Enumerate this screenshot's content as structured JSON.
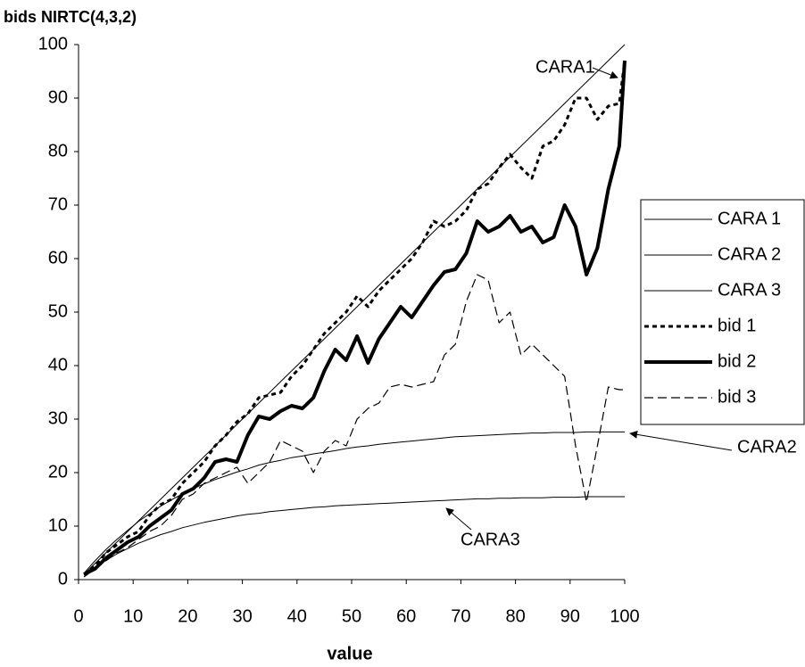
{
  "chart_data": {
    "type": "line",
    "title": "bids NIRTC(4,3,2)",
    "xlabel": "value",
    "x": [
      1,
      3,
      5,
      7,
      9,
      11,
      13,
      15,
      17,
      19,
      21,
      23,
      25,
      27,
      29,
      31,
      33,
      35,
      37,
      39,
      41,
      43,
      45,
      47,
      49,
      51,
      53,
      55,
      57,
      59,
      61,
      63,
      65,
      67,
      69,
      71,
      73,
      75,
      77,
      79,
      81,
      83,
      85,
      87,
      89,
      91,
      93,
      95,
      97,
      99,
      100
    ],
    "xlim": [
      0,
      100
    ],
    "xticks": [
      0,
      10,
      20,
      30,
      40,
      50,
      60,
      70,
      80,
      90,
      100
    ],
    "ylim": [
      0,
      100
    ],
    "yticks": [
      0,
      10,
      20,
      30,
      40,
      50,
      60,
      70,
      80,
      90,
      100
    ],
    "legend": "right",
    "series": [
      {
        "name": "CARA 1",
        "color": "#000000",
        "line_style": "solid",
        "line_width": 1,
        "values": [
          1,
          3,
          5,
          7,
          9,
          11,
          13,
          15,
          17,
          19,
          21,
          23,
          25,
          27,
          29,
          31,
          33,
          35,
          37,
          39,
          41,
          43,
          45,
          47,
          49,
          51,
          53,
          55,
          57,
          59,
          61,
          63,
          65,
          67,
          69,
          71,
          73,
          75,
          77,
          79,
          81,
          83,
          85,
          87,
          89,
          91,
          93,
          95,
          97,
          99,
          100
        ]
      },
      {
        "name": "CARA 2",
        "color": "#000000",
        "line_style": "solid",
        "line_width": 1,
        "values": [
          1.2,
          3.5,
          5.6,
          7.5,
          9.2,
          10.9,
          12.3,
          13.7,
          14.9,
          16.0,
          17.0,
          17.9,
          18.7,
          19.4,
          20.1,
          20.7,
          21.4,
          21.9,
          22.3,
          22.8,
          23.1,
          23.5,
          23.8,
          24.1,
          24.5,
          24.8,
          25.0,
          25.3,
          25.5,
          25.7,
          25.9,
          26.1,
          26.3,
          26.5,
          26.7,
          26.8,
          26.9,
          27.0,
          27.1,
          27.2,
          27.3,
          27.4,
          27.4,
          27.5,
          27.5,
          27.5,
          27.6,
          27.6,
          27.6,
          27.6,
          27.6
        ]
      },
      {
        "name": "CARA 3",
        "color": "#000000",
        "line_style": "solid",
        "line_width": 1,
        "values": [
          0.8,
          2.3,
          3.6,
          4.8,
          5.8,
          6.8,
          7.6,
          8.4,
          9.0,
          9.7,
          10.2,
          10.7,
          11.1,
          11.5,
          11.9,
          12.2,
          12.4,
          12.7,
          12.9,
          13.1,
          13.3,
          13.5,
          13.6,
          13.8,
          13.9,
          14.0,
          14.1,
          14.2,
          14.3,
          14.4,
          14.5,
          14.6,
          14.7,
          14.8,
          14.9,
          15.0,
          15.1,
          15.1,
          15.2,
          15.2,
          15.3,
          15.3,
          15.3,
          15.4,
          15.4,
          15.4,
          15.5,
          15.5,
          15.5,
          15.5,
          15.5
        ]
      },
      {
        "name": "bid 1",
        "color": "#000000",
        "line_style": "dotted",
        "line_width": 3,
        "values": [
          1,
          2.5,
          5,
          6.5,
          8,
          9,
          12,
          14,
          15,
          18,
          20,
          22,
          25,
          27,
          29.5,
          31,
          34,
          34.5,
          35,
          38,
          40,
          43,
          46,
          48,
          50,
          53,
          51,
          54,
          56,
          58,
          60,
          63,
          67,
          66,
          67,
          69,
          73,
          74,
          77,
          79.5,
          77,
          75,
          81,
          82,
          85,
          90,
          90,
          86,
          88.5,
          89,
          97
        ]
      },
      {
        "name": "bid 2",
        "color": "#000000",
        "line_style": "solid",
        "line_width": 4,
        "values": [
          1,
          2,
          4,
          5.5,
          7,
          8,
          10,
          11.5,
          13,
          16,
          17,
          19,
          22,
          22.5,
          22,
          27,
          30.5,
          30,
          31.5,
          32.5,
          32,
          34,
          39,
          43,
          41,
          45.5,
          40.5,
          45,
          48,
          51,
          49,
          52,
          55,
          57.5,
          58,
          61,
          67,
          65,
          66,
          68,
          65,
          66,
          63,
          64,
          70,
          66,
          57,
          62,
          73,
          81,
          97
        ]
      },
      {
        "name": "bid 3",
        "color": "#000000",
        "line_style": "dashed",
        "line_width": 1.2,
        "values": [
          0.5,
          2,
          3.5,
          5,
          6,
          7.5,
          9,
          10,
          12,
          15,
          16,
          18,
          19,
          20,
          21,
          18,
          20,
          22,
          26,
          25,
          24,
          20,
          24,
          26,
          25,
          30,
          32,
          33,
          36,
          36.5,
          36,
          36.5,
          37,
          42,
          44,
          52,
          57,
          56,
          48,
          50,
          42,
          44,
          42,
          40,
          38,
          25,
          14.5,
          25,
          36,
          35.5,
          35.5
        ]
      }
    ],
    "annotations": [
      "CARA1",
      "CARA2",
      "CARA3"
    ]
  }
}
